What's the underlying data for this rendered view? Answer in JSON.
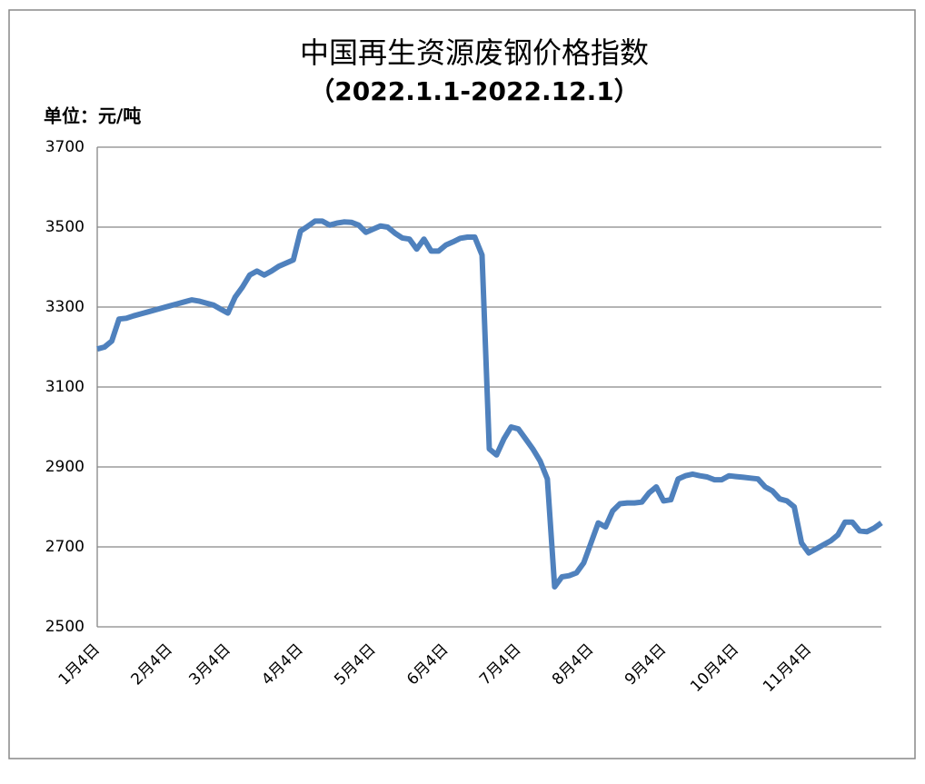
{
  "chart_data": {
    "type": "line",
    "title": "中国再生资源废钢价格指数",
    "subtitle": "（2022.1.1-2022.12.1）",
    "y_label": "单位：元/吨",
    "categories": [
      "1月4日",
      null,
      null,
      null,
      null,
      null,
      null,
      null,
      null,
      null,
      "2月4日",
      null,
      null,
      null,
      null,
      null,
      null,
      null,
      "3月4日",
      null,
      null,
      null,
      null,
      null,
      null,
      null,
      null,
      null,
      "4月4日",
      null,
      null,
      null,
      null,
      null,
      null,
      null,
      null,
      null,
      "5月4日",
      null,
      null,
      null,
      null,
      null,
      null,
      null,
      null,
      null,
      "6月4日",
      null,
      null,
      null,
      null,
      null,
      null,
      null,
      null,
      null,
      "7月4日",
      null,
      null,
      null,
      null,
      null,
      null,
      null,
      null,
      null,
      "8月4日",
      null,
      null,
      null,
      null,
      null,
      null,
      null,
      null,
      null,
      "9月4日",
      null,
      null,
      null,
      null,
      null,
      null,
      null,
      null,
      null,
      "10月4日",
      null,
      null,
      null,
      null,
      null,
      null,
      null,
      null,
      null,
      "11月4日",
      null,
      null,
      null,
      null,
      null,
      null,
      null,
      null,
      null,
      null
    ],
    "values": [
      3195,
      3200,
      3215,
      3270,
      3272,
      3278,
      3283,
      3288,
      3293,
      3298,
      3303,
      3308,
      3313,
      3318,
      3315,
      3310,
      3305,
      3295,
      3285,
      3325,
      3350,
      3380,
      3390,
      3380,
      3390,
      3402,
      3410,
      3418,
      3490,
      3502,
      3515,
      3515,
      3505,
      3510,
      3513,
      3512,
      3505,
      3487,
      3495,
      3503,
      3500,
      3485,
      3473,
      3470,
      3445,
      3470,
      3440,
      3440,
      3455,
      3463,
      3472,
      3475,
      3475,
      3430,
      2945,
      2930,
      2970,
      3000,
      2995,
      2970,
      2945,
      2915,
      2870,
      2600,
      2625,
      2628,
      2635,
      2660,
      2710,
      2760,
      2750,
      2790,
      2808,
      2810,
      2810,
      2812,
      2835,
      2850,
      2815,
      2818,
      2870,
      2878,
      2882,
      2878,
      2875,
      2868,
      2868,
      2878,
      2876,
      2874,
      2872,
      2870,
      2850,
      2840,
      2820,
      2815,
      2800,
      2710,
      2685,
      2695,
      2705,
      2715,
      2730,
      2762,
      2762,
      2740,
      2738,
      2747,
      2760
    ],
    "color": "#4f81bd",
    "ylim": [
      2500,
      3700
    ],
    "yticks": [
      2500,
      2700,
      2900,
      3100,
      3300,
      3500,
      3700
    ],
    "grid": true
  }
}
